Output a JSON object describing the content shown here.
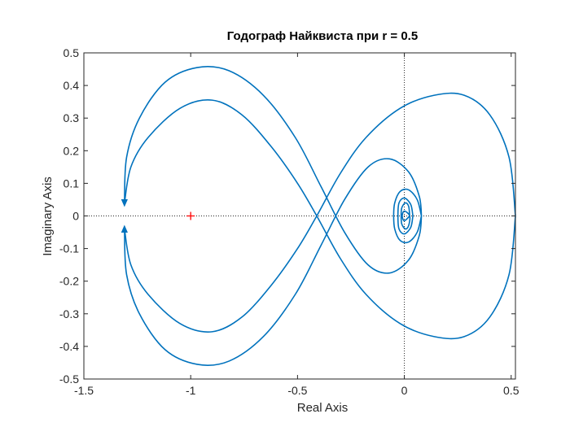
{
  "chart_data": {
    "type": "line",
    "title": "Годограф Найквиста при r = 0.5",
    "xlabel": "Real Axis",
    "ylabel": "Imaginary Axis",
    "xlim": [
      -1.5,
      0.52
    ],
    "ylim": [
      -0.5,
      0.5
    ],
    "xticks": [
      "-1.5",
      "-1",
      "-0.5",
      "0",
      "0.5"
    ],
    "xtick_values": [
      -1.5,
      -1,
      -0.5,
      0,
      0.5
    ],
    "yticks": [
      "0.5",
      "0.4",
      "0.3",
      "0.2",
      "0.1",
      "0",
      "-0.1",
      "-0.2",
      "-0.3",
      "-0.4",
      "-0.5"
    ],
    "ytick_values": [
      0.5,
      0.4,
      0.3,
      0.2,
      0.1,
      0,
      -0.1,
      -0.2,
      -0.3,
      -0.4,
      -0.5
    ],
    "grid": false,
    "zero_lines": "dotted",
    "series_color": "#0072BD",
    "critical_point": {
      "x": -1,
      "y": 0,
      "marker": "+",
      "color": "#FF0000"
    },
    "series": [
      {
        "points": [
          [
            0.52,
            0.0
          ],
          [
            0.49,
            0.18
          ],
          [
            0.4,
            0.31
          ],
          [
            0.28,
            0.37
          ],
          [
            0.14,
            0.37
          ],
          [
            -0.02,
            0.33
          ],
          [
            -0.18,
            0.24
          ],
          [
            -0.3,
            0.13
          ],
          [
            -0.41,
            0.0
          ],
          [
            -0.5,
            -0.1
          ],
          [
            -0.62,
            -0.21
          ],
          [
            -0.76,
            -0.31
          ],
          [
            -0.9,
            -0.355
          ],
          [
            -1.05,
            -0.33
          ],
          [
            -1.2,
            -0.24
          ],
          [
            -1.28,
            -0.15
          ],
          [
            -1.31,
            -0.04
          ]
        ]
      },
      {
        "points": [
          [
            0.52,
            0.0
          ],
          [
            0.49,
            -0.18
          ],
          [
            0.4,
            -0.31
          ],
          [
            0.28,
            -0.37
          ],
          [
            0.14,
            -0.37
          ],
          [
            -0.02,
            -0.33
          ],
          [
            -0.18,
            -0.24
          ],
          [
            -0.3,
            -0.13
          ],
          [
            -0.41,
            0.0
          ],
          [
            -0.5,
            0.1
          ],
          [
            -0.62,
            0.21
          ],
          [
            -0.76,
            0.31
          ],
          [
            -0.9,
            0.355
          ],
          [
            -1.05,
            0.33
          ],
          [
            -1.2,
            0.24
          ],
          [
            -1.28,
            0.15
          ],
          [
            -1.31,
            0.04
          ]
        ]
      },
      {
        "points": [
          [
            -1.31,
            0.04
          ],
          [
            -1.3,
            0.18
          ],
          [
            -1.24,
            0.3
          ],
          [
            -1.12,
            0.41
          ],
          [
            -0.97,
            0.455
          ],
          [
            -0.82,
            0.445
          ],
          [
            -0.66,
            0.37
          ],
          [
            -0.51,
            0.24
          ],
          [
            -0.39,
            0.09
          ],
          [
            -0.28,
            -0.05
          ],
          [
            -0.17,
            -0.15
          ],
          [
            -0.07,
            -0.175
          ],
          [
            0.02,
            -0.135
          ],
          [
            0.07,
            -0.06
          ],
          [
            0.08,
            0.0
          ]
        ]
      },
      {
        "points": [
          [
            -1.31,
            -0.04
          ],
          [
            -1.3,
            -0.18
          ],
          [
            -1.24,
            -0.3
          ],
          [
            -1.12,
            -0.41
          ],
          [
            -0.97,
            -0.455
          ],
          [
            -0.82,
            -0.445
          ],
          [
            -0.66,
            -0.37
          ],
          [
            -0.51,
            -0.24
          ],
          [
            -0.39,
            -0.09
          ],
          [
            -0.28,
            0.05
          ],
          [
            -0.17,
            0.15
          ],
          [
            -0.07,
            0.175
          ],
          [
            0.02,
            0.135
          ],
          [
            0.07,
            0.06
          ],
          [
            0.08,
            0.0
          ]
        ]
      },
      {
        "points": [
          [
            0.08,
            0.0
          ],
          [
            0.06,
            0.05
          ],
          [
            0.02,
            0.08
          ],
          [
            -0.02,
            0.075
          ],
          [
            -0.045,
            0.04
          ],
          [
            -0.05,
            0.0
          ],
          [
            -0.045,
            -0.04
          ],
          [
            -0.02,
            -0.075
          ],
          [
            0.02,
            -0.08
          ],
          [
            0.06,
            -0.05
          ],
          [
            0.08,
            0.0
          ]
        ]
      },
      {
        "points": [
          [
            0.04,
            0.0
          ],
          [
            0.03,
            0.035
          ],
          [
            0.0,
            0.055
          ],
          [
            -0.025,
            0.04
          ],
          [
            -0.03,
            0.0
          ],
          [
            -0.025,
            -0.04
          ],
          [
            0.0,
            -0.055
          ],
          [
            0.03,
            -0.035
          ],
          [
            0.04,
            0.0
          ]
        ]
      },
      {
        "points": [
          [
            0.025,
            0.0
          ],
          [
            0.02,
            0.03
          ],
          [
            0.005,
            0.04
          ],
          [
            -0.012,
            0.025
          ],
          [
            -0.015,
            0.0
          ],
          [
            -0.012,
            -0.025
          ],
          [
            0.005,
            -0.04
          ],
          [
            0.02,
            -0.03
          ],
          [
            0.025,
            0.0
          ],
          [
            0.0,
            0.015
          ],
          [
            -0.01,
            0.0
          ],
          [
            0.0,
            -0.015
          ],
          [
            0.025,
            0.0
          ]
        ]
      }
    ],
    "arrows": [
      {
        "x": -1.31,
        "y": 0.04,
        "direction": "down"
      },
      {
        "x": -1.31,
        "y": -0.04,
        "direction": "up"
      }
    ]
  }
}
